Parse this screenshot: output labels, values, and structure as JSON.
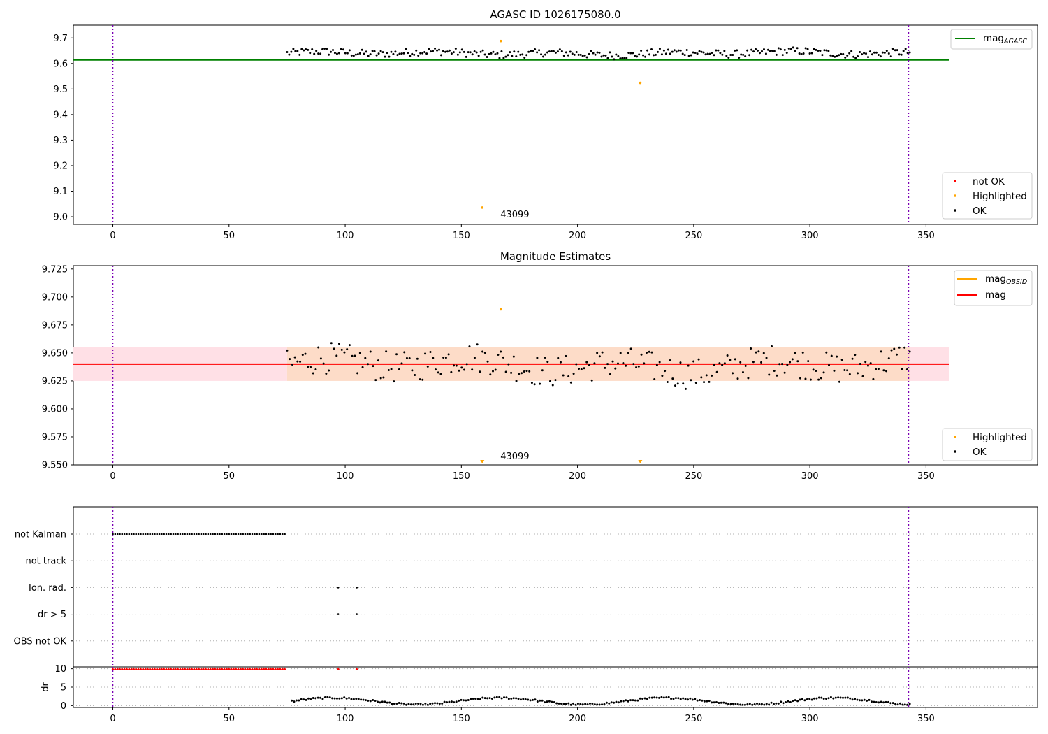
{
  "chart_data": [
    {
      "type": "scatter",
      "title": "AGASC ID 1026175080.0",
      "xlim": [
        -17,
        398
      ],
      "ylim": [
        8.97,
        9.75
      ],
      "xticks": [
        0,
        50,
        100,
        150,
        200,
        250,
        300,
        350
      ],
      "yticks": [
        9.0,
        9.1,
        9.2,
        9.3,
        9.4,
        9.5,
        9.6,
        9.7
      ],
      "ytick_decimals": 1,
      "vlines": [
        0,
        342.5
      ],
      "hline": {
        "value": 9.614,
        "x_from": -17,
        "x_to": 360,
        "color": "#008000",
        "name": "mag<sub>AGASC</sub>"
      },
      "series": [
        {
          "name": "not OK",
          "color": "#ff0000",
          "points": []
        },
        {
          "name": "Highlighted",
          "color": "#ffa500",
          "points": [
            [
              159,
              9.036
            ],
            [
              167,
              9.688
            ],
            [
              227,
              9.524
            ]
          ]
        },
        {
          "name": "OK",
          "color": "#000000",
          "band": {
            "from": 75,
            "to": 343,
            "center": 9.64,
            "spread": 0.022,
            "count": 300
          }
        }
      ],
      "annotations": [
        {
          "text": "43099",
          "x": 165,
          "y": 9.0
        }
      ],
      "legend_top": [
        {
          "label": "mag",
          "sub": "AGASC",
          "color": "#008000"
        }
      ],
      "legend_bottom": [
        "not OK",
        "Highlighted",
        "OK"
      ],
      "legend_placement": [
        "upper right",
        "lower right"
      ]
    },
    {
      "type": "scatter",
      "title": "Magnitude Estimates",
      "xlim": [
        -17,
        398
      ],
      "ylim": [
        9.55,
        9.728
      ],
      "xticks": [
        0,
        50,
        100,
        150,
        200,
        250,
        300,
        350
      ],
      "yticks": [
        9.55,
        9.575,
        9.6,
        9.625,
        9.65,
        9.675,
        9.7,
        9.725
      ],
      "ytick_decimals": 3,
      "vlines": [
        0,
        342.5
      ],
      "band": {
        "from": 9.625,
        "to": 9.655,
        "x_from": -17,
        "x_to": 360
      },
      "hline": {
        "value": 9.64,
        "x_from": -17,
        "x_to": 360,
        "color": "#ff0000",
        "name": "mag"
      },
      "series": [
        {
          "name": "Highlighted",
          "color": "#ffa500",
          "points": [
            [
              167,
              9.689
            ]
          ],
          "below_axis": [
            159,
            227
          ]
        },
        {
          "name": "OK",
          "color": "#000000",
          "band": {
            "from": 75,
            "to": 343,
            "center": 9.639,
            "spread": 0.02,
            "count": 240
          }
        }
      ],
      "annotations": [
        {
          "text": "43099",
          "x": 165,
          "y": 9.552
        }
      ],
      "legend_top": [
        {
          "label": "mag",
          "sub": "OBSID",
          "color": "#ffa500"
        },
        {
          "label": "mag",
          "sub": "",
          "color": "#ff0000"
        }
      ],
      "legend_bottom": [
        "Highlighted",
        "OK"
      ],
      "legend_placement": [
        "upper right",
        "lower right"
      ]
    },
    {
      "type": "scatter",
      "xlim": [
        -17,
        398
      ],
      "categories": [
        "not Kalman",
        "not track",
        "Ion. rad.",
        "dr > 5",
        "OBS not OK"
      ],
      "flags": [
        {
          "category": "not Kalman",
          "from": 0,
          "to": 74
        },
        {
          "category": "Ion. rad.",
          "points": [
            97,
            105
          ]
        },
        {
          "category": "dr > 5",
          "points": [
            97,
            105
          ]
        }
      ],
      "vlines": [
        0,
        342.5
      ]
    },
    {
      "type": "scatter",
      "ylabel": "dr",
      "xlim": [
        -17,
        398
      ],
      "ylim": [
        -0.5,
        10.5
      ],
      "xticks": [
        0,
        50,
        100,
        150,
        200,
        250,
        300,
        350
      ],
      "yticks": [
        0,
        5,
        10
      ],
      "vlines": [
        0,
        342.5
      ],
      "clipped": {
        "from": 0,
        "to": 74,
        "value": 10,
        "extra": [
          97,
          105
        ],
        "color": "#ff0000"
      },
      "series": [
        {
          "name": "dr",
          "color": "#000000",
          "band": {
            "from": 77,
            "to": 343,
            "center": 1.2,
            "spread": 0.9,
            "count": 260
          }
        }
      ]
    }
  ]
}
